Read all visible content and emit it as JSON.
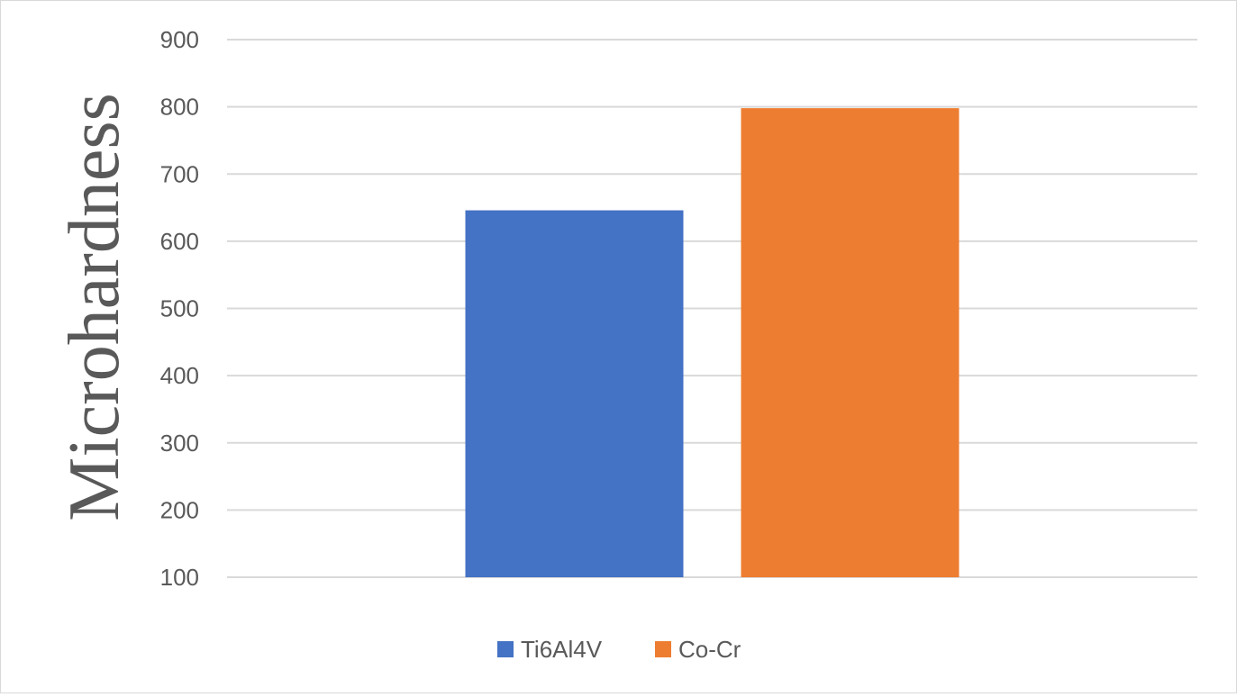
{
  "chart_data": {
    "type": "bar",
    "categories": [
      ""
    ],
    "series": [
      {
        "name": "Ti6Al4V",
        "values": [
          646
        ],
        "color": "#4472C4"
      },
      {
        "name": "Co-Cr",
        "values": [
          798
        ],
        "color": "#ED7D31"
      }
    ],
    "title": "",
    "xlabel": "",
    "ylabel": "Microhardness",
    "ylim": [
      100,
      900
    ],
    "yticks": [
      "100",
      "200",
      "300",
      "400",
      "500",
      "600",
      "700",
      "800",
      "900"
    ],
    "grid": true,
    "legend_position": "bottom",
    "gridline_color": "#d9d9d9"
  }
}
